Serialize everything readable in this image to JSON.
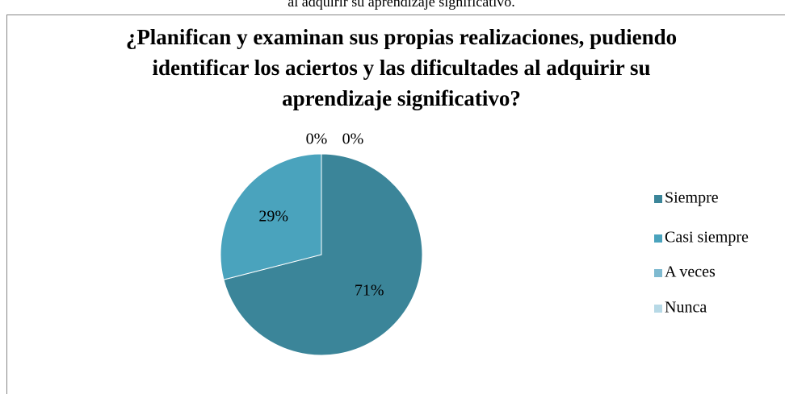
{
  "caption": "al adquirir su aprendizaje significativo.",
  "chart_data": {
    "type": "pie",
    "title": "¿Planifican y examinan sus propias realizaciones, pudiendo identificar los aciertos y las dificultades al adquirir su aprendizaje significativo?",
    "categories": [
      "Siempre",
      "Casi siempre",
      "A veces",
      "Nunca"
    ],
    "values": [
      71,
      29,
      0,
      0
    ],
    "value_labels": [
      "71%",
      "29%",
      "0%",
      "0%"
    ],
    "colors": [
      "#3b8599",
      "#4aa3bd",
      "#7fbad0",
      "#b7d9e6"
    ],
    "legend": "right"
  }
}
